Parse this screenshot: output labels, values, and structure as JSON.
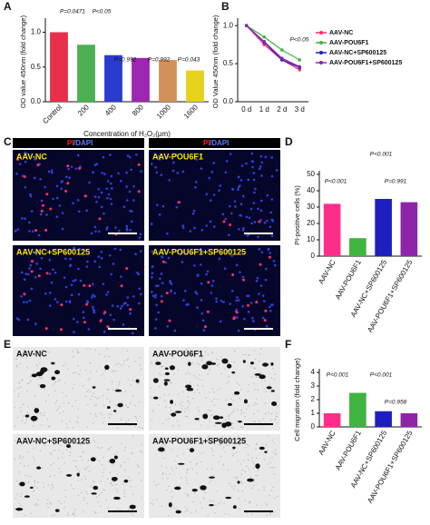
{
  "chart_data": [
    {
      "type": "bar",
      "panel": "A",
      "ylabel": "OD value 450nm (fold change)",
      "xlabel": "Concentration of H₂O₂(μm)",
      "categories": [
        "Control",
        "200",
        "400",
        "800",
        "1000",
        "1600"
      ],
      "values": [
        1.0,
        0.82,
        0.67,
        0.63,
        0.6,
        0.45
      ],
      "colors": [
        "#e8304a",
        "#4caf50",
        "#2a3bd0",
        "#9c27b0",
        "#d2915a",
        "#e6d21a"
      ],
      "ylim": [
        0,
        1.15
      ],
      "yticks": [
        {
          "value": 0,
          "label": "0.0"
        },
        {
          "value": 0.5,
          "label": "0.5"
        },
        {
          "value": 1,
          "label": "1.0"
        }
      ],
      "annotations": [
        "P=0.0471",
        "P<0.05",
        "P=0.992",
        "P=0.992",
        "P=0.043"
      ]
    },
    {
      "type": "line",
      "panel": "B",
      "ylabel": "OD Value 450nm (fold change)",
      "categories": [
        "0 d",
        "1 d",
        "2 d",
        "3 d"
      ],
      "series": [
        {
          "name": "AAV-NC",
          "color": "#ff2d6f",
          "values": [
            1.0,
            0.75,
            0.55,
            0.42
          ]
        },
        {
          "name": "AAV-POU6F1",
          "color": "#3fb53f",
          "values": [
            1.0,
            0.85,
            0.68,
            0.55
          ]
        },
        {
          "name": "AAV-NC+SP600125",
          "color": "#1f1fbf",
          "values": [
            1.0,
            0.78,
            0.55,
            0.45
          ]
        },
        {
          "name": "AAV-POU6F1+SP600125",
          "color": "#8e24aa",
          "values": [
            1.0,
            0.79,
            0.57,
            0.46
          ]
        }
      ],
      "ylim": [
        0,
        1.05
      ],
      "yticks": [
        {
          "value": 0,
          "label": "0.0"
        },
        {
          "value": 0.5,
          "label": "0.5"
        },
        {
          "value": 1,
          "label": "1.0"
        }
      ],
      "annotations": [
        "P<0.05"
      ]
    },
    {
      "type": "bar",
      "panel": "D",
      "ylabel": "PI-positive cells (%)",
      "categories": [
        "AAV-NC",
        "AAV-POU6F1",
        "AAV-NC+SP600125",
        "AAV-POU6F1+SP600125"
      ],
      "values": [
        32,
        11,
        35,
        33
      ],
      "colors": [
        "#ff2d8a",
        "#3fb53f",
        "#1f1fbf",
        "#8e24aa"
      ],
      "ylim": [
        0,
        50
      ],
      "yticks": [
        0,
        10,
        20,
        30,
        40,
        50
      ],
      "annotations": [
        "P<0.001",
        "P<0.001",
        "P=0.991"
      ]
    },
    {
      "type": "bar",
      "panel": "F",
      "ylabel": "Cell migration (fold change)",
      "categories": [
        "AAV-NC",
        "AAV-POU6F1",
        "AAV-NC+SP600125",
        "AAV-POU6F1+SP600125"
      ],
      "values": [
        1.0,
        2.5,
        1.15,
        1.0
      ],
      "colors": [
        "#ff2d8a",
        "#3fb53f",
        "#1f1fbf",
        "#8e24aa"
      ],
      "ylim": [
        0,
        4
      ],
      "yticks": [
        0,
        1,
        2,
        3,
        4
      ],
      "annotations": [
        "P<0.001",
        "P<0.001",
        "P=0.958"
      ]
    }
  ],
  "image_panels": [
    {
      "panel": "C",
      "headers": [
        {
          "stain": "PI",
          "counter": "/DAPI"
        },
        {
          "stain": "PI",
          "counter": "/DAPI"
        }
      ],
      "labels": [
        "AAV-NC",
        "AAV-POU6F1",
        "AAV-NC+SP600125",
        "AAV-POU6F1+SP600125"
      ]
    },
    {
      "panel": "E",
      "labels": [
        "AAV-NC",
        "AAV-POU6F1",
        "AAV-NC+SP600125",
        "AAV-POU6F1+SP600125"
      ]
    }
  ]
}
